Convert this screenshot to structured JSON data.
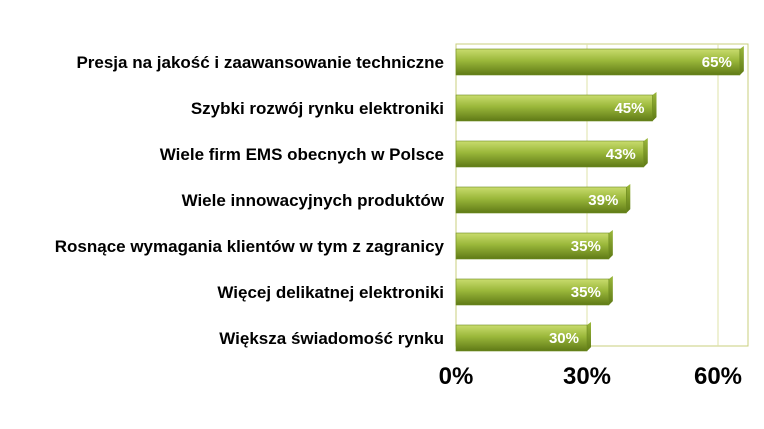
{
  "chart_data": {
    "type": "bar",
    "orientation": "horizontal",
    "categories": [
      "Presja na jakość i zaawansowanie techniczne",
      "Szybki rozwój rynku elektroniki",
      "Wiele firm EMS obecnych w Polsce",
      "Wiele innowacyjnych produktów",
      "Rosnące wymagania klientów w tym z zagranicy",
      "Więcej delikatnej elektroniki",
      "Większa świadomość rynku"
    ],
    "values": [
      65,
      45,
      43,
      39,
      35,
      35,
      30
    ],
    "value_labels": [
      "65%",
      "45%",
      "43%",
      "39%",
      "35%",
      "35%",
      "30%"
    ],
    "x_ticks": [
      0,
      30,
      60
    ],
    "x_tick_labels": [
      "0%",
      "30%",
      "60%"
    ],
    "xlim": [
      0,
      65
    ],
    "grid": true,
    "colors": {
      "bar_light": "#c9dc6e",
      "bar_mid": "#9ab73a",
      "bar_dark": "#5f7a16",
      "bar_edge": "#6d8a1e",
      "grid": "#dfe3a8",
      "plot_border": "#c8cf7e"
    }
  }
}
